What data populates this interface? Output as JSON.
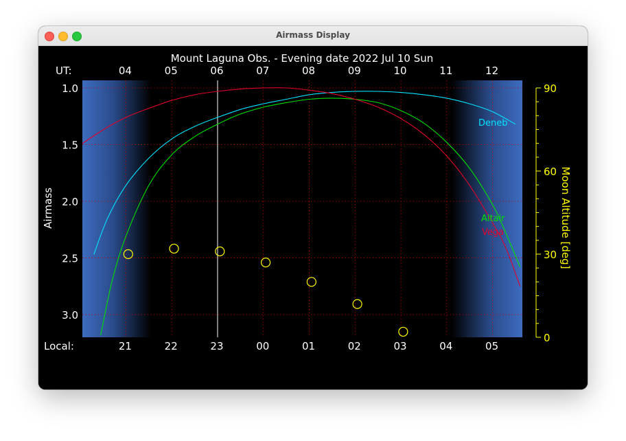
{
  "window": {
    "title": "Airmass Display"
  },
  "chart_data": {
    "type": "line",
    "title": "Mount Laguna Obs. - Evening date 2022 Jul 10  Sun",
    "ylabel": "Airmass",
    "y2label": "Moon Altitude [deg]",
    "ut_label": "UT:",
    "local_label": "Local:",
    "ut_ticks": [
      "04",
      "05",
      "06",
      "07",
      "08",
      "09",
      "10",
      "11",
      "12"
    ],
    "local_ticks": [
      "21",
      "22",
      "23",
      "00",
      "01",
      "02",
      "03",
      "04",
      "05"
    ],
    "ylim": [
      1.0,
      3.2
    ],
    "y_ticks": [
      "1.0",
      "1.5",
      "2.0",
      "2.5",
      "3.0"
    ],
    "y2lim": [
      0,
      90
    ],
    "y2_ticks": [
      "90",
      "60",
      "30",
      "0"
    ],
    "grid": true,
    "x_range_ut_hours": [
      3.05,
      12.65
    ],
    "twilight": {
      "evening_dark_start_ut": 4.55,
      "morning_dark_end_ut": 11.1
    },
    "current_time_ut": 6.0,
    "colors": {
      "Deneb": "#00e5ff",
      "Altair": "#00e000",
      "Vega": "#e0002a",
      "moon": "#ffff00",
      "axis": "#ffff00",
      "grid": "#cc0000",
      "twilight": "#3d6cc0"
    },
    "series": [
      {
        "name": "Deneb",
        "x": [
          3.3,
          3.6,
          4.0,
          4.5,
          5.0,
          5.5,
          6.0,
          6.5,
          7.0,
          7.5,
          8.0,
          8.5,
          9.0,
          9.5,
          10.0,
          10.5,
          11.0,
          11.5,
          12.0,
          12.5
        ],
        "values": [
          2.47,
          2.15,
          1.86,
          1.62,
          1.45,
          1.34,
          1.26,
          1.19,
          1.14,
          1.1,
          1.06,
          1.04,
          1.03,
          1.03,
          1.04,
          1.06,
          1.09,
          1.14,
          1.21,
          1.32
        ]
      },
      {
        "name": "Altair",
        "x": [
          3.45,
          3.7,
          4.0,
          4.5,
          5.0,
          5.5,
          6.0,
          6.5,
          7.0,
          7.5,
          8.0,
          8.5,
          9.0,
          9.5,
          10.0,
          10.5,
          11.0,
          11.5,
          12.0,
          12.3,
          12.6
        ],
        "values": [
          3.18,
          2.7,
          2.31,
          1.86,
          1.59,
          1.43,
          1.32,
          1.23,
          1.17,
          1.13,
          1.1,
          1.09,
          1.1,
          1.13,
          1.2,
          1.31,
          1.48,
          1.71,
          2.03,
          2.29,
          2.58
        ]
      },
      {
        "name": "Vega",
        "x": [
          3.05,
          3.5,
          4.0,
          4.5,
          5.0,
          5.5,
          6.0,
          6.5,
          7.0,
          7.5,
          8.0,
          8.5,
          9.0,
          9.5,
          10.0,
          10.5,
          11.0,
          11.5,
          12.0,
          12.3,
          12.6
        ],
        "values": [
          1.49,
          1.37,
          1.26,
          1.18,
          1.11,
          1.06,
          1.03,
          1.01,
          1.0,
          1.0,
          1.02,
          1.05,
          1.1,
          1.17,
          1.27,
          1.41,
          1.6,
          1.86,
          2.19,
          2.42,
          2.75
        ]
      }
    ],
    "moon_altitude": {
      "x": [
        4.05,
        5.05,
        6.05,
        7.05,
        8.05,
        9.05,
        10.05
      ],
      "values": [
        30,
        32,
        31,
        27,
        20,
        12,
        2
      ]
    },
    "legend_labels": [
      "Deneb",
      "Altair",
      "Vega"
    ]
  }
}
